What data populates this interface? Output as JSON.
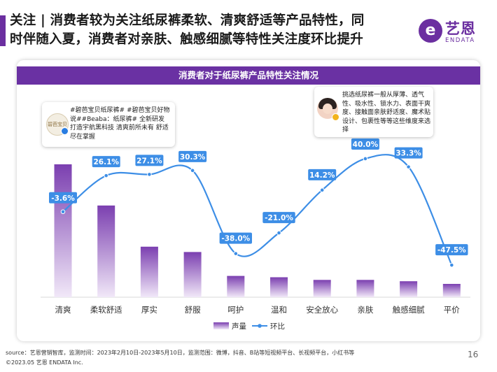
{
  "header": {
    "line1": "关注 | 消费者较为关注纸尿裤柔软、清爽舒适等产品特性，同",
    "line2": "时伴随入夏，消费者对亲肤、触感细腻等特性关注度环比提升"
  },
  "logo": {
    "mark": "e",
    "name": "艺恩",
    "sub": "ENDATA"
  },
  "notes": {
    "left": {
      "badge": "碧芭宝贝",
      "text": "#碧芭宝贝纸尿裤# #碧芭宝贝好物说##Beaba：纸尿裤# 全新研发 打造宇航黑科技 清爽前所未有 舒适尽在掌握"
    },
    "right": {
      "text": "挑选纸尿裤一般从厚薄、透气性、吸水性、锁水力、表面干爽度、接触面亲肤舒适度、魔术贴设计、包裹性等等这些维度来选择"
    }
  },
  "colors": {
    "accent": "#6b2fa0",
    "bar_top": "#7b3fb0",
    "bar_bottom": "#f1e8f8",
    "line": "#3d8ee6"
  },
  "chart_data": {
    "type": "bar+line",
    "title": "消费者对于纸尿裤产品特性关注情况",
    "categories": [
      "清爽",
      "柔软舒适",
      "厚实",
      "舒服",
      "呵护",
      "温和",
      "安全放心",
      "亲肤",
      "触感细腻",
      "平价"
    ],
    "series": [
      {
        "name": "声量",
        "type": "bar",
        "values": [
          100,
          69,
          38,
          34,
          16,
          15,
          13,
          13,
          12,
          10
        ]
      },
      {
        "name": "环比",
        "type": "line",
        "values": [
          -3.6,
          26.1,
          27.1,
          30.3,
          -38.0,
          -21.0,
          14.2,
          40.0,
          33.3,
          -47.5
        ],
        "labels": [
          "-3.6%",
          "26.1%",
          "27.1%",
          "30.3%",
          "-38.0%",
          "-21.0%",
          "14.2%",
          "40.0%",
          "33.3%",
          "-47.5%"
        ]
      }
    ],
    "legend": "bottom-center"
  },
  "footer": {
    "source": "source：艺恩营销智库，监测时间：2023年2月10日-2023年5月10日，监测范围：微博，抖音、B站等短视频平台、长视频平台，小红书等",
    "copyright": "©2023.05 艺恩 ENDATA Inc.",
    "page": "16"
  }
}
